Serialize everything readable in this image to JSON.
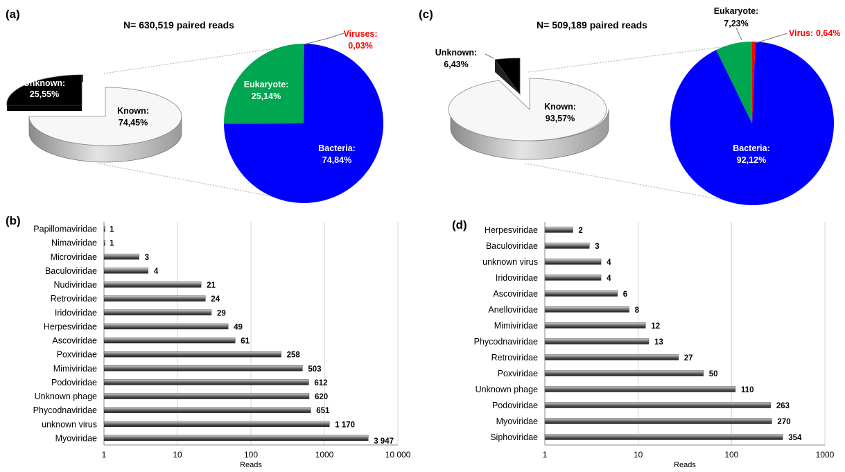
{
  "chart_data": [
    {
      "panel": "(a)",
      "type": "pie",
      "title": "N= 630,519 paired reads",
      "slices": [
        {
          "label": "Unknown:",
          "value_label": "25,55%",
          "value": 25.55,
          "color": "#000000",
          "exploded": true
        },
        {
          "label": "Known:",
          "value_label": "74,45%",
          "value": 74.45,
          "color": "#f7f7f7"
        }
      ]
    },
    {
      "panel": "(a)",
      "type": "pie",
      "slices": [
        {
          "label": "Viruses:",
          "value_label": "0,03%",
          "value": 0.03,
          "color": "#ff0000"
        },
        {
          "label": "Bacteria:",
          "value_label": "74,84%",
          "value": 74.84,
          "color": "#0000ff"
        },
        {
          "label": "Eukaryote:",
          "value_label": "25,14%",
          "value": 25.14,
          "color": "#00a650"
        }
      ]
    },
    {
      "panel": "(c)",
      "type": "pie",
      "title": "N= 509,189 paired reads",
      "slices": [
        {
          "label": "Unknown:",
          "value_label": "6,43%",
          "value": 6.43,
          "color": "#000000",
          "exploded": true
        },
        {
          "label": "Known:",
          "value_label": "93,57%",
          "value": 93.57,
          "color": "#f7f7f7"
        }
      ]
    },
    {
      "panel": "(c)",
      "type": "pie",
      "slices": [
        {
          "label": "Virus:",
          "value_label": "0,64%",
          "value": 0.64,
          "color": "#ff0000"
        },
        {
          "label": "Bacteria:",
          "value_label": "92,12%",
          "value": 92.12,
          "color": "#0000ff"
        },
        {
          "label": "Eukaryote:",
          "value_label": "7,23%",
          "value": 7.23,
          "color": "#00a650"
        }
      ]
    },
    {
      "panel": "(b)",
      "type": "bar",
      "orientation": "horizontal",
      "xscale": "log",
      "xlabel": "Reads",
      "xlim": [
        1,
        10000
      ],
      "xticks": [
        1,
        10,
        100,
        1000,
        10000
      ],
      "xtick_labels": [
        "1",
        "10",
        "100",
        "1000",
        "10 000"
      ],
      "grid": true,
      "categories": [
        "Myoviridae",
        "unknown virus",
        "Phycodnaviridae",
        "Unknown phage",
        "Podoviridae",
        "Mimiviridae",
        "Poxviridae",
        "Ascoviridae",
        "Herpesviridae",
        "Iridoviridae",
        "Retroviridae",
        "Nudiviridae",
        "Baculoviridae",
        "Microviridae",
        "Nimaviridae",
        "Papillomaviridae"
      ],
      "values": [
        3947,
        1170,
        651,
        620,
        612,
        503,
        258,
        61,
        49,
        29,
        24,
        21,
        4,
        3,
        1,
        1
      ],
      "value_labels": [
        "3 947",
        "1 170",
        "651",
        "620",
        "612",
        "503",
        "258",
        "61",
        "49",
        "29",
        "24",
        "21",
        "4",
        "3",
        "1",
        "1"
      ]
    },
    {
      "panel": "(d)",
      "type": "bar",
      "orientation": "horizontal",
      "xscale": "log",
      "xlabel": "Reads",
      "xlim": [
        1,
        1000
      ],
      "xticks": [
        1,
        10,
        100,
        1000
      ],
      "xtick_labels": [
        "1",
        "10",
        "100",
        "1000"
      ],
      "grid": true,
      "categories": [
        "Siphoviridae",
        "Myoviridae",
        "Podoviridae",
        "Unknown phage",
        "Poxviridae",
        "Retroviridae",
        "Phycodnaviridae",
        "Mimiviridae",
        "Anelloviridae",
        "Ascoviridae",
        "Iridoviridae",
        "unknown virus",
        "Baculoviridae",
        "Herpesviridae"
      ],
      "values": [
        354,
        270,
        263,
        110,
        50,
        27,
        13,
        12,
        8,
        6,
        4,
        4,
        3,
        2
      ],
      "value_labels": [
        "354",
        "270",
        "263",
        "110",
        "50",
        "27",
        "13",
        "12",
        "8",
        "6",
        "4",
        "4",
        "3",
        "2"
      ]
    }
  ],
  "labels": {
    "a": "(a)",
    "b": "(b)",
    "c": "(c)",
    "d": "(d)"
  }
}
